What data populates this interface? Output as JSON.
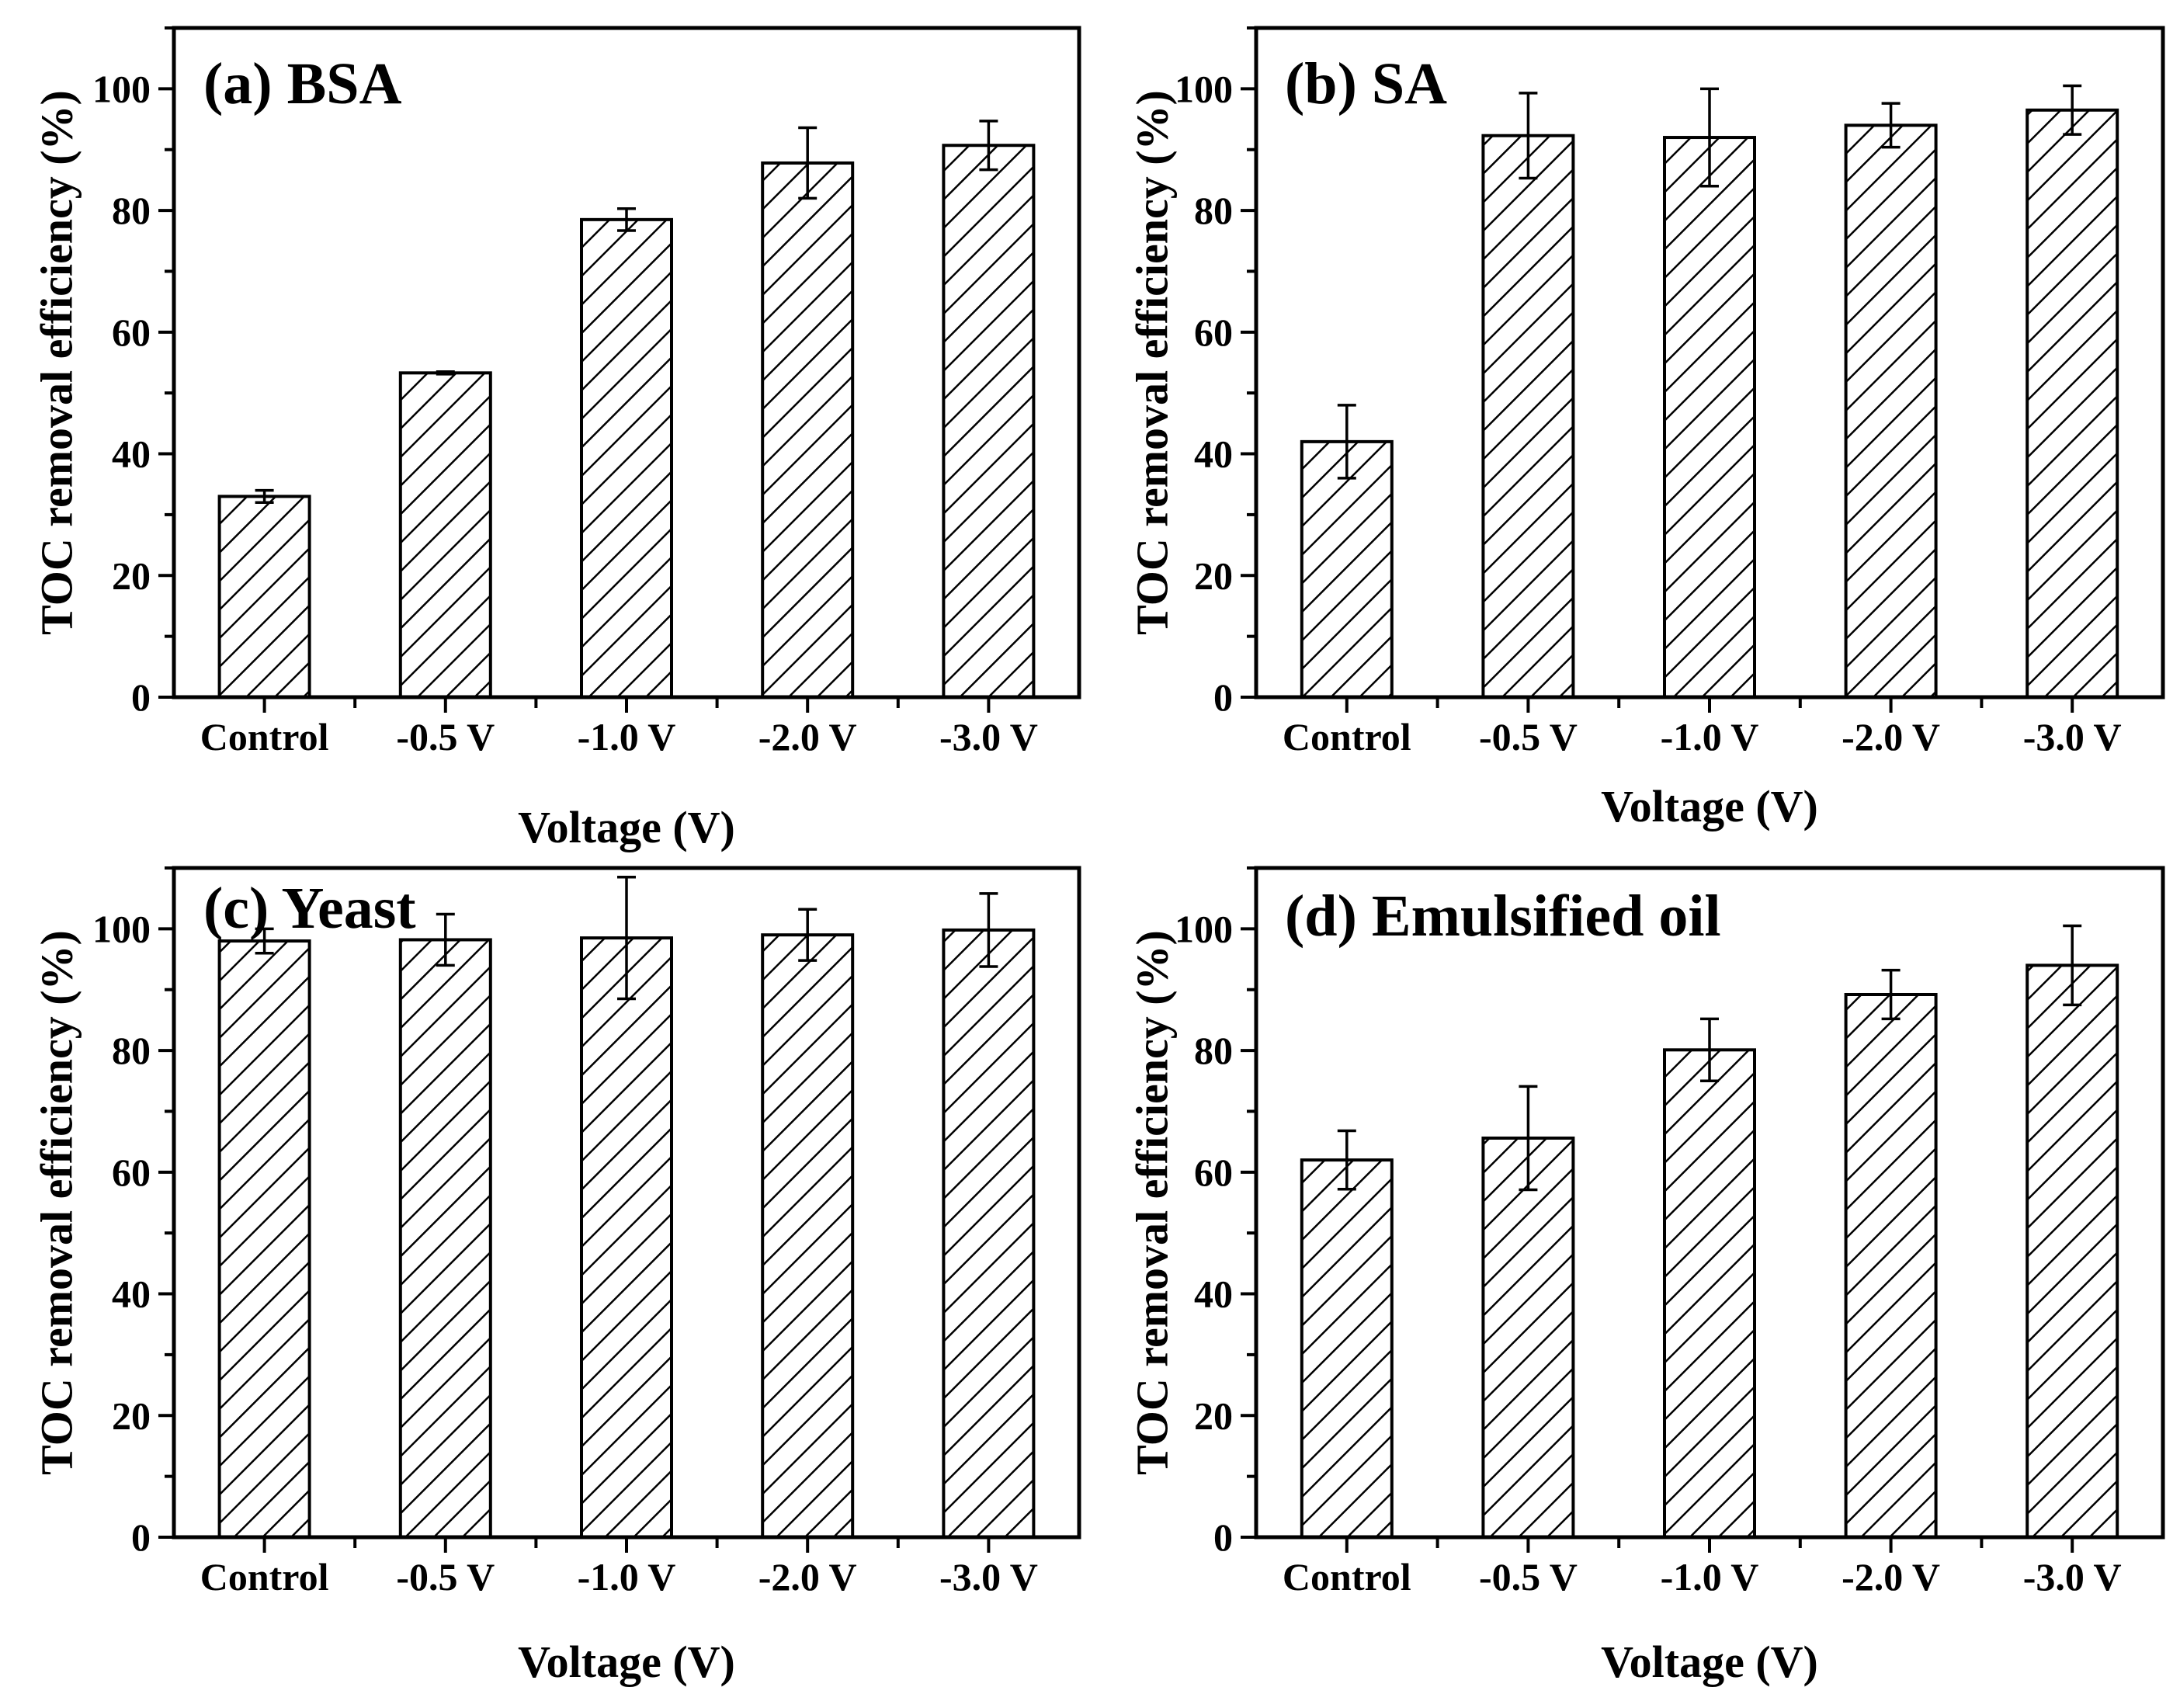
{
  "figure": {
    "categories": [
      "Control",
      "-0.5 V",
      "-1.0 V",
      "-2.0 V",
      "-3.0 V"
    ],
    "yticks": [
      "0",
      "20",
      "40",
      "60",
      "80",
      "100"
    ],
    "colors": {
      "bar_fill": "#ffffff",
      "hatch": "#000000",
      "axis": "#000000"
    }
  },
  "chart_data": [
    {
      "type": "bar",
      "title": "(a)  BSA",
      "xlabel": "Voltage (V)",
      "ylabel": "TOC removal efficiency (%)",
      "categories": [
        "Control",
        "-0.5 V",
        "-1.0 V",
        "-2.0 V",
        "-3.0 V"
      ],
      "values": [
        33,
        53.3,
        78.5,
        87.8,
        90.7
      ],
      "errors": [
        1,
        0.2,
        1.8,
        5.8,
        4
      ],
      "ylim": [
        0,
        110
      ],
      "yticks": [
        0,
        20,
        40,
        60,
        80,
        100
      ]
    },
    {
      "type": "bar",
      "title": "(b) SA",
      "xlabel": "Voltage (V)",
      "ylabel": "TOC removal efficiency (%)",
      "categories": [
        "Control",
        "-0.5 V",
        "-1.0 V",
        "-2.0 V",
        "-3.0 V"
      ],
      "values": [
        42,
        92.3,
        92,
        94,
        96.5
      ],
      "errors": [
        6,
        7,
        8,
        3.6,
        4
      ],
      "ylim": [
        0,
        110
      ],
      "yticks": [
        0,
        20,
        40,
        60,
        80,
        100
      ]
    },
    {
      "type": "bar",
      "title": "(c)  Yeast",
      "xlabel": "Voltage (V)",
      "ylabel": "TOC removal efficiency (%)",
      "categories": [
        "Control",
        "-0.5 V",
        "-1.0 V",
        "-2.0 V",
        "-3.0 V"
      ],
      "values": [
        98,
        98.2,
        98.5,
        99,
        99.8
      ],
      "errors": [
        2,
        4.2,
        10,
        4.2,
        6
      ],
      "ylim": [
        0,
        110
      ],
      "yticks": [
        0,
        20,
        40,
        60,
        80,
        100
      ]
    },
    {
      "type": "bar",
      "title": "(d) Emulsified oil",
      "xlabel": "Voltage (V)",
      "ylabel": "TOC removal efficiency (%)",
      "categories": [
        "Control",
        "-0.5 V",
        "-1.0 V",
        "-2.0 V",
        "-3.0 V"
      ],
      "values": [
        62,
        65.6,
        80.1,
        89.2,
        94
      ],
      "errors": [
        4.8,
        8.5,
        5.1,
        4,
        6.5
      ],
      "ylim": [
        0,
        110
      ],
      "yticks": [
        0,
        20,
        40,
        60,
        80,
        100
      ]
    }
  ]
}
